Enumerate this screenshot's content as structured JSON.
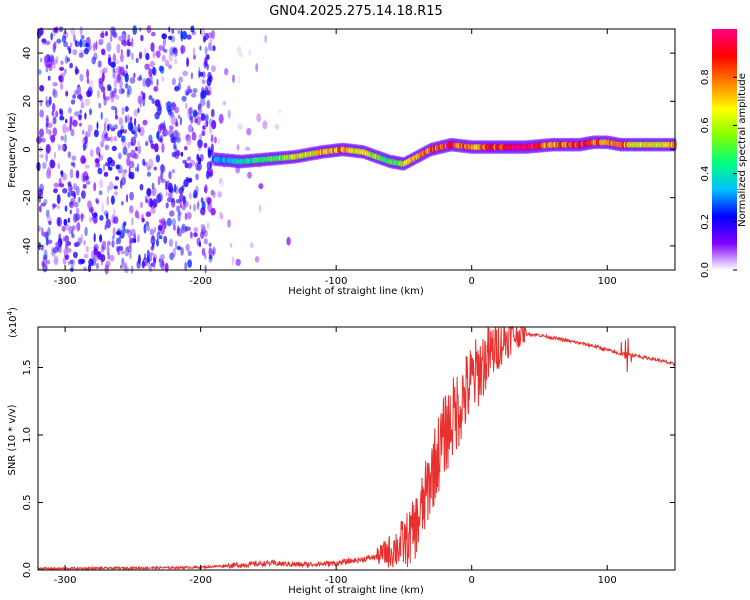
{
  "figure": {
    "title": "GN04.2025.275.14.18.R15"
  },
  "chart_data": [
    {
      "type": "heatmap",
      "xlabel": "Height of straight line (km)",
      "ylabel": "Frequency (Hz)",
      "xlim": [
        -320,
        150
      ],
      "ylim": [
        -50,
        50
      ],
      "xticks": [
        -300,
        -200,
        -100,
        0,
        100
      ],
      "yticks": [
        -40,
        -20,
        0,
        20,
        40
      ],
      "colorbar": {
        "label": "Normalized spectral amplitude",
        "range": [
          0.0,
          1.0
        ],
        "ticks": [
          "0.0",
          "0.2",
          "0.4",
          "0.6",
          "0.8"
        ],
        "colors": [
          "#ffffff",
          "#8000ff",
          "#0000ff",
          "#00c0ff",
          "#00ff80",
          "#80ff00",
          "#ffff00",
          "#ff8000",
          "#ff0000",
          "#ff0080"
        ]
      },
      "noise_region": {
        "x_range": [
          -320,
          -190
        ],
        "frequency_range": [
          -50,
          50
        ],
        "typical_amplitude": 0.15
      },
      "signal_track": {
        "x": [
          -190,
          -170,
          -150,
          -130,
          -110,
          -95,
          -80,
          -70,
          -60,
          -50,
          -40,
          -30,
          -15,
          0,
          20,
          40,
          60,
          80,
          90,
          100,
          110,
          120,
          150
        ],
        "frequency": [
          -4,
          -5,
          -4,
          -3,
          -1,
          0,
          -1,
          -3,
          -5,
          -6,
          -3,
          0,
          2,
          1,
          1,
          1,
          2,
          2,
          3,
          3,
          2,
          2,
          2
        ],
        "amplitude": [
          0.3,
          0.4,
          0.5,
          0.6,
          0.7,
          0.75,
          0.6,
          0.6,
          0.45,
          0.6,
          0.7,
          0.8,
          0.9,
          0.75,
          0.85,
          1.0,
          0.7,
          0.9,
          0.8,
          0.7,
          0.85,
          0.6,
          0.7
        ]
      }
    },
    {
      "type": "line",
      "xlabel": "Height of straight line (km)",
      "ylabel": "SNR (10 * v/v)",
      "y_multiplier_label": "(x10",
      "y_multiplier_exp": "4",
      "y_multiplier_close": ")",
      "xlim": [
        -320,
        150
      ],
      "ylim": [
        0,
        1.8
      ],
      "xticks": [
        -300,
        -200,
        -100,
        0,
        100
      ],
      "yticks": [
        "0.0",
        "0.5",
        "1.0",
        "1.5"
      ],
      "series": [
        {
          "color": "#e8302e",
          "x": [
            -320,
            -250,
            -200,
            -175,
            -150,
            -125,
            -100,
            -80,
            -70,
            -60,
            -50,
            -45,
            -40,
            -35,
            -30,
            -25,
            -20,
            -15,
            -10,
            -5,
            0,
            10,
            20,
            30,
            40,
            50,
            60,
            70,
            80,
            90,
            100,
            110,
            115,
            120,
            130,
            140,
            150
          ],
          "y": [
            0.01,
            0.015,
            0.02,
            0.035,
            0.05,
            0.04,
            0.05,
            0.08,
            0.1,
            0.14,
            0.2,
            0.25,
            0.35,
            0.5,
            0.7,
            0.85,
            1.0,
            1.1,
            1.2,
            1.3,
            1.4,
            1.55,
            1.68,
            1.74,
            1.75,
            1.74,
            1.72,
            1.7,
            1.68,
            1.66,
            1.63,
            1.6,
            1.6,
            1.59,
            1.57,
            1.55,
            1.52
          ]
        }
      ]
    }
  ]
}
